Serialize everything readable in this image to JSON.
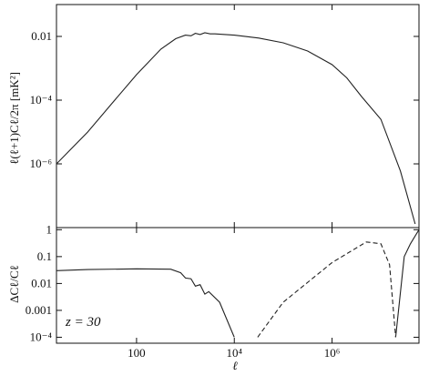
{
  "chart_data": [
    {
      "type": "line",
      "ylabel": "ℓ(ℓ+1)Cℓ/2π [mK²]",
      "log_x": true,
      "log_y": true,
      "xlim": [
        2.3,
        60000000
      ],
      "ylim": [
        1e-08,
        0.1
      ],
      "xticks": [
        100,
        10000,
        1000000
      ],
      "yticks": [
        0.01,
        {
          "value": 0.0001,
          "label": "10⁻⁴"
        },
        {
          "value": 1e-06,
          "label": "10⁻⁶"
        }
      ],
      "x": [
        2.3,
        10,
        31.6,
        100,
        316,
        631,
        1000,
        1300,
        1600,
        2000,
        2500,
        3200,
        4000,
        10000,
        31600,
        100000,
        316000,
        1000000,
        2000000,
        4000000,
        10000000,
        25000000,
        50000000
      ],
      "series": [
        {
          "color": "#222222",
          "dash": false,
          "values": [
            1e-06,
            1e-05,
            8e-05,
            0.00063,
            0.004,
            0.0085,
            0.011,
            0.0105,
            0.0125,
            0.0115,
            0.013,
            0.012,
            0.012,
            0.011,
            0.0089,
            0.0063,
            0.0035,
            0.0013,
            0.0005,
            0.00013,
            2.5e-05,
            6e-07,
            1.3e-08
          ]
        }
      ]
    },
    {
      "type": "line",
      "ylabel": "ΔCℓ/Cℓ",
      "xlabel": "ℓ",
      "annotation": "z = 30",
      "log_x": true,
      "log_y": true,
      "xlim": [
        2.3,
        60000000
      ],
      "ylim": [
        6e-05,
        1.2
      ],
      "xticks": [
        100,
        {
          "value": 10000,
          "label": "10⁴"
        },
        {
          "value": 1000000,
          "label": "10⁶"
        }
      ],
      "yticks": [
        1,
        0.1,
        0.01,
        0.001,
        {
          "value": 0.0001,
          "label": "10⁻⁴"
        }
      ],
      "x": [
        2.3,
        10,
        100,
        500,
        800,
        1000,
        1300,
        1600,
        2000,
        2500,
        3000,
        5000,
        10000,
        30000,
        100000,
        1000000,
        5000000,
        10000000,
        15000000,
        20000000,
        30000000,
        40000000,
        60000000
      ],
      "series": [
        {
          "color": "#222222",
          "dash": false,
          "values": [
            0.03,
            0.033,
            0.035,
            0.034,
            0.025,
            0.016,
            0.015,
            0.008,
            0.009,
            0.004,
            0.005,
            0.002,
            0.0001,
            null,
            null,
            null,
            null,
            null,
            null,
            0.0001,
            0.1,
            0.3,
            1
          ]
        },
        {
          "color": "#222222",
          "dash": true,
          "values": [
            null,
            null,
            null,
            null,
            null,
            null,
            null,
            null,
            null,
            null,
            null,
            null,
            null,
            0.0001,
            0.002,
            0.06,
            0.35,
            0.3,
            0.05,
            0.0001,
            null,
            null,
            null
          ]
        }
      ]
    }
  ]
}
